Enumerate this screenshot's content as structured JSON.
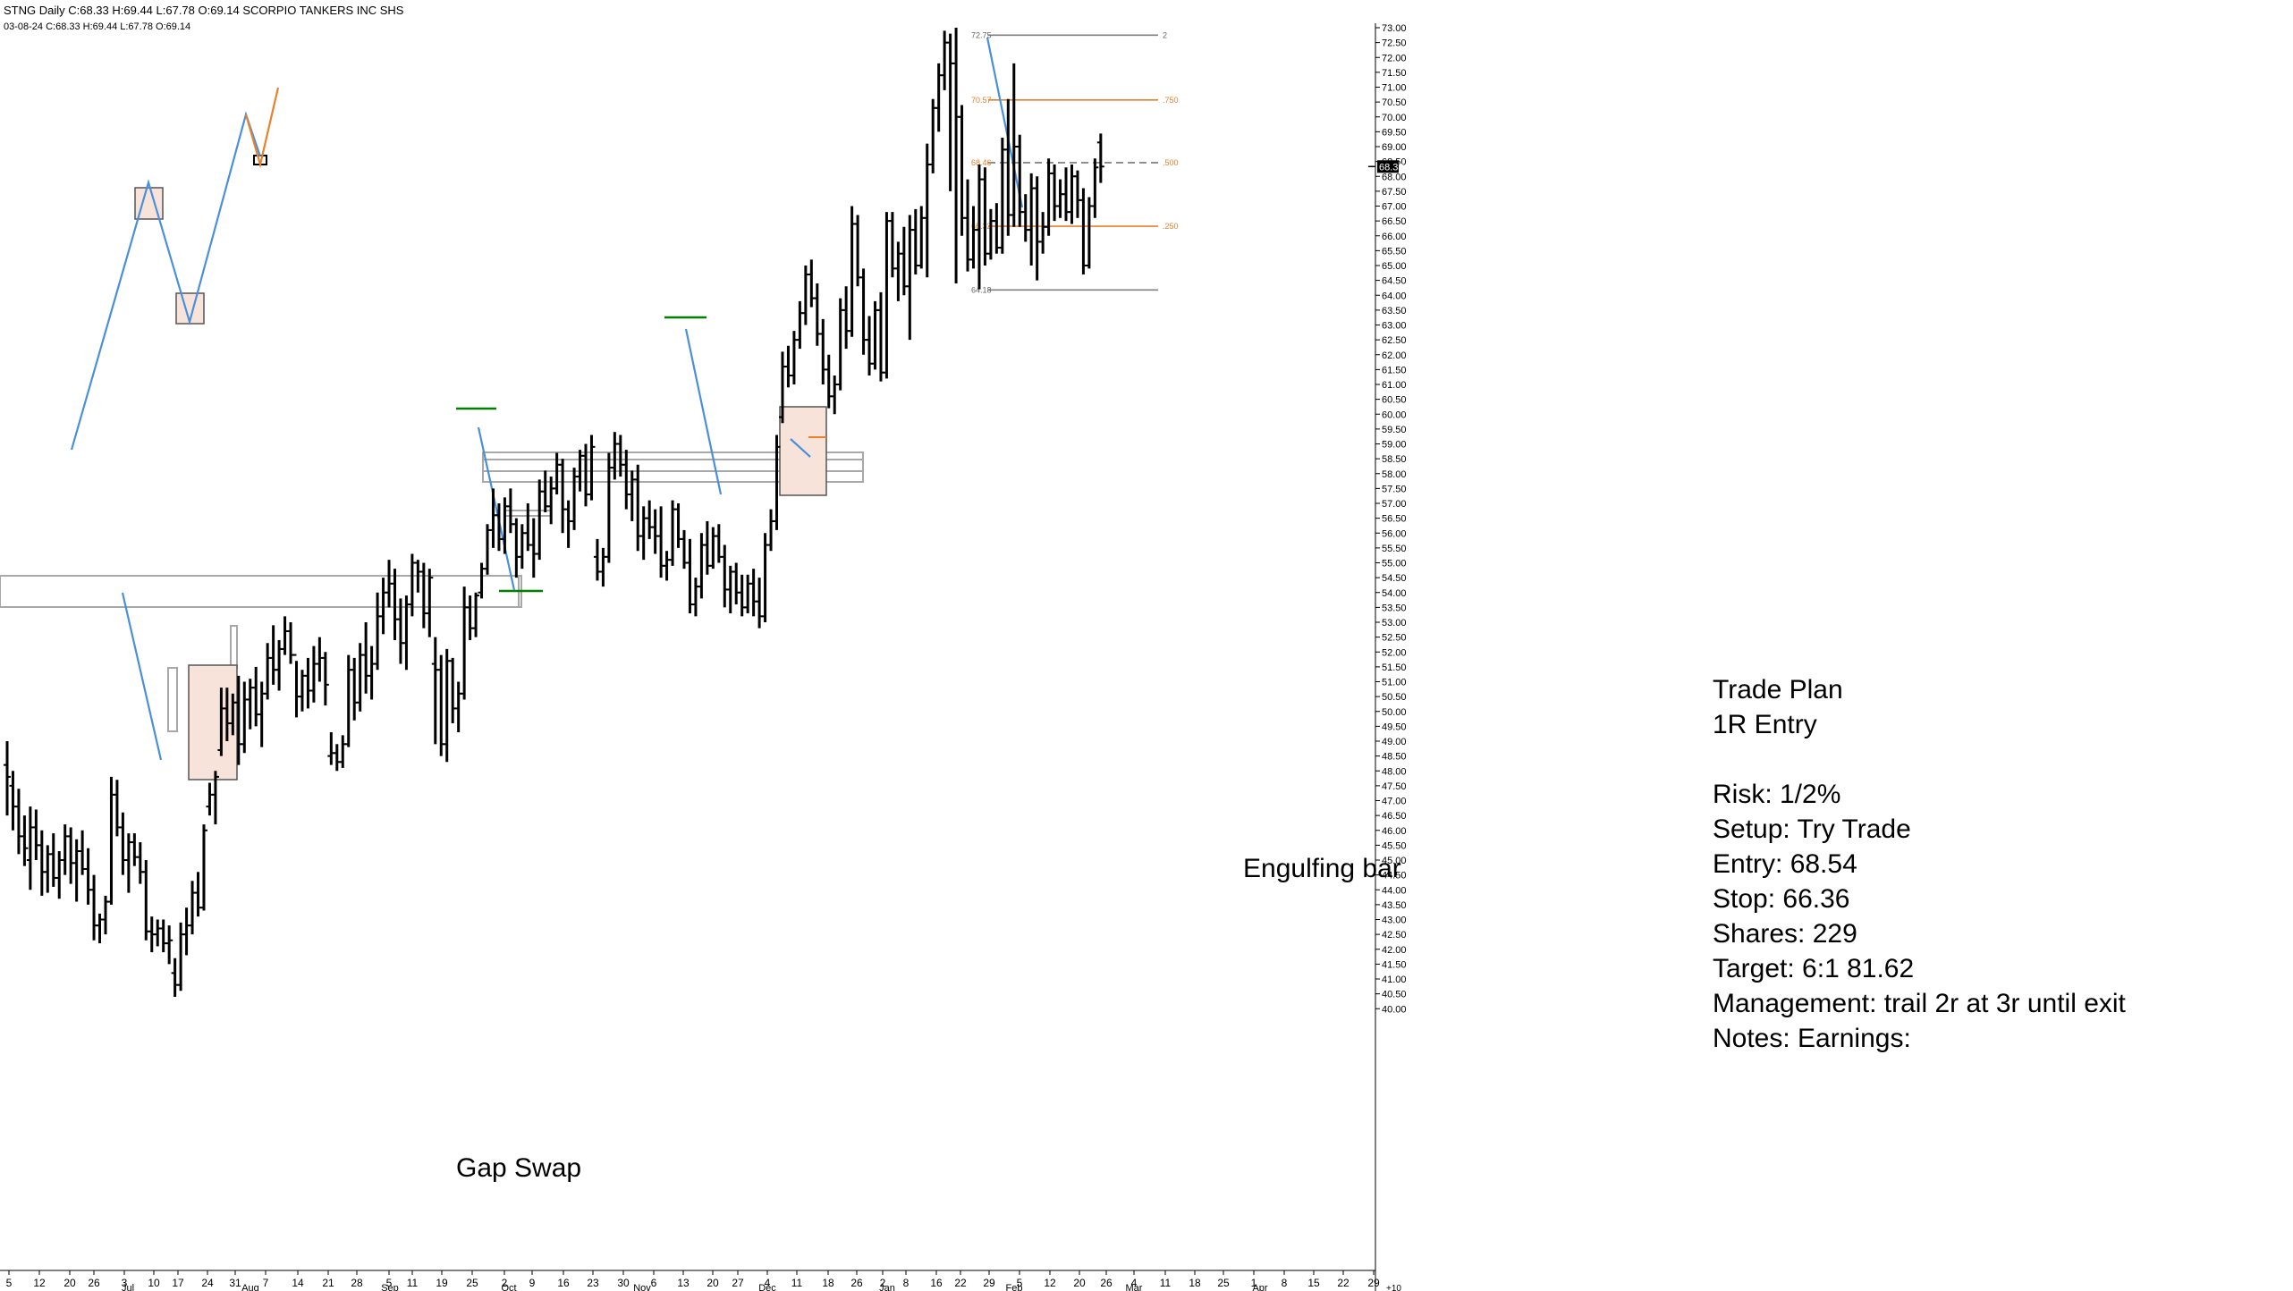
{
  "header": {
    "line1": "STNG Daily C:68.33 H:69.44 L:67.78 O:69.14 SCORPIO TANKERS INC SHS",
    "line2": "03-08-24 C:68.33 H:69.44 L:67.78 O:69.14"
  },
  "notes": {
    "gap_swap": "Gap Swap",
    "engulfing": "Engulfing bar"
  },
  "trade_plan": {
    "title": "Trade Plan",
    "subtitle": "1R Entry",
    "risk": "Risk: 1/2%",
    "setup": "Setup: Try Trade",
    "entry": "Entry: 68.54",
    "stop": "Stop: 66.36",
    "shares": "Shares: 229",
    "target": "Target: 6:1  81.62",
    "management": "Management: trail 2r at 3r until exit",
    "notes_line": "Notes: Earnings:"
  },
  "colors": {
    "bars": "#000000",
    "swing_line": "#4a90d9",
    "projection_line": "#e8812c",
    "level_line": "#008000",
    "zone_fill": "#f8e3da",
    "fib_mid": "#e8812c",
    "fib_outer": "#808080"
  },
  "chart_data": {
    "type": "ohlc",
    "symbol": "STNG",
    "y_axis": {
      "min": 40.0,
      "max": 73.0,
      "tick_step": 0.5,
      "last_price": "68.33",
      "position": "right"
    },
    "x_axis": {
      "tick_labels": [
        "5",
        "12",
        "20",
        "26",
        "3",
        "10",
        "17",
        "24",
        "31",
        "7",
        "14",
        "21",
        "28",
        "5",
        "11",
        "19",
        "25",
        "2",
        "9",
        "16",
        "23",
        "30",
        "6",
        "13",
        "20",
        "27",
        "4",
        "11",
        "18",
        "26",
        "2",
        "8",
        "16",
        "22",
        "29",
        "5",
        "12",
        "20",
        "26",
        "4",
        "11",
        "18",
        "25",
        "1",
        "8",
        "15",
        "22",
        "29"
      ],
      "month_labels": [
        "Jul",
        "Aug",
        "Sep",
        "Oct",
        "Nov",
        "Dec",
        "Jan",
        "Feb",
        "Mar",
        "Apr"
      ],
      "right_label": "+10"
    },
    "fib_levels": [
      {
        "value": 72.75,
        "label": "72.75",
        "ratio": "2"
      },
      {
        "value": 70.57,
        "label": "70.57",
        "ratio": ".750"
      },
      {
        "value": 68.46,
        "label": "68.46",
        "ratio": ".500"
      },
      {
        "value": 66.32,
        "label": "66.32",
        "ratio": ".250"
      },
      {
        "value": 64.18,
        "label": "64.18",
        "ratio": ""
      }
    ],
    "bars": [
      [
        48.2,
        49.0,
        46.5,
        47.8
      ],
      [
        47.5,
        48.0,
        46.0,
        46.8
      ],
      [
        46.8,
        47.4,
        45.2,
        45.8
      ],
      [
        45.8,
        46.5,
        44.8,
        45.4
      ],
      [
        45.0,
        46.8,
        44.0,
        46.1
      ],
      [
        46.1,
        46.7,
        45.0,
        45.5
      ],
      [
        45.5,
        46.0,
        43.8,
        44.6
      ],
      [
        44.6,
        45.5,
        43.9,
        45.2
      ],
      [
        45.2,
        45.9,
        44.1,
        44.4
      ],
      [
        44.4,
        45.3,
        43.7,
        45.0
      ],
      [
        45.0,
        46.2,
        44.5,
        45.8
      ],
      [
        45.8,
        46.1,
        44.2,
        44.9
      ],
      [
        44.9,
        45.7,
        43.6,
        45.3
      ],
      [
        45.3,
        46.0,
        44.5,
        44.7
      ],
      [
        44.7,
        45.4,
        43.5,
        44.0
      ],
      [
        44.0,
        44.5,
        42.3,
        42.8
      ],
      [
        42.8,
        43.2,
        42.2,
        43.0
      ],
      [
        43.0,
        43.8,
        42.5,
        43.6
      ],
      [
        43.6,
        47.8,
        43.5,
        47.2
      ],
      [
        47.2,
        47.7,
        45.8,
        46.1
      ],
      [
        46.1,
        46.6,
        44.5,
        45.0
      ],
      [
        45.0,
        45.9,
        43.9,
        45.6
      ],
      [
        45.6,
        45.9,
        44.8,
        45.1
      ],
      [
        45.1,
        45.6,
        44.2,
        44.6
      ],
      [
        44.6,
        45.0,
        42.3,
        42.6
      ],
      [
        42.6,
        43.1,
        41.9,
        42.5
      ],
      [
        42.5,
        43.0,
        42.1,
        42.7
      ],
      [
        42.7,
        43.0,
        41.9,
        42.2
      ],
      [
        42.2,
        42.8,
        41.5,
        42.3
      ],
      [
        41.2,
        41.7,
        40.4,
        40.8
      ],
      [
        40.8,
        42.9,
        40.6,
        42.5
      ],
      [
        42.5,
        43.4,
        41.8,
        42.8
      ],
      [
        42.8,
        44.3,
        42.5,
        43.9
      ],
      [
        43.9,
        44.6,
        43.1,
        43.4
      ],
      [
        43.4,
        46.2,
        43.3,
        46.0
      ],
      [
        46.8,
        47.6,
        46.5,
        47.2
      ],
      [
        47.2,
        48.0,
        46.2,
        47.8
      ],
      [
        48.7,
        50.8,
        48.5,
        50.1
      ],
      [
        50.1,
        50.8,
        49.0,
        49.6
      ],
      [
        49.6,
        50.6,
        49.2,
        50.3
      ],
      [
        50.3,
        51.2,
        48.2,
        48.9
      ],
      [
        48.9,
        51.0,
        48.6,
        50.4
      ],
      [
        50.4,
        51.1,
        49.4,
        50.8
      ],
      [
        50.8,
        51.5,
        49.5,
        49.9
      ],
      [
        49.9,
        51.0,
        48.8,
        50.6
      ],
      [
        50.6,
        52.3,
        50.4,
        51.8
      ],
      [
        51.8,
        52.9,
        50.9,
        51.4
      ],
      [
        51.4,
        52.4,
        50.7,
        52.1
      ],
      [
        52.1,
        53.2,
        51.9,
        52.7
      ],
      [
        52.7,
        53.0,
        51.6,
        51.9
      ],
      [
        51.9,
        51.7,
        49.8,
        50.5
      ],
      [
        50.5,
        51.4,
        50.0,
        51.2
      ],
      [
        51.2,
        51.8,
        50.1,
        50.7
      ],
      [
        50.7,
        52.2,
        50.3,
        51.6
      ],
      [
        51.6,
        52.5,
        51.0,
        51.8
      ],
      [
        51.8,
        52.0,
        50.2,
        50.9
      ],
      [
        48.5,
        49.3,
        48.2,
        48.6
      ],
      [
        48.6,
        48.9,
        48.0,
        48.3
      ],
      [
        48.3,
        49.2,
        48.1,
        48.9
      ],
      [
        48.9,
        51.9,
        48.8,
        51.4
      ],
      [
        51.4,
        51.8,
        49.7,
        50.3
      ],
      [
        50.3,
        52.3,
        50.0,
        51.9
      ],
      [
        51.9,
        53.0,
        50.6,
        51.2
      ],
      [
        51.2,
        52.2,
        50.4,
        51.6
      ],
      [
        51.6,
        54.0,
        51.4,
        53.2
      ],
      [
        53.2,
        54.5,
        52.6,
        54.0
      ],
      [
        54.0,
        55.1,
        53.5,
        54.3
      ],
      [
        54.3,
        54.8,
        52.4,
        53.1
      ],
      [
        53.1,
        53.8,
        51.6,
        52.3
      ],
      [
        52.3,
        53.9,
        51.4,
        53.6
      ],
      [
        53.6,
        55.3,
        53.2,
        55.0
      ],
      [
        55.0,
        55.1,
        54.0,
        54.7
      ],
      [
        54.7,
        55.0,
        52.8,
        53.3
      ],
      [
        53.3,
        54.8,
        52.5,
        54.5
      ],
      [
        51.6,
        52.5,
        48.9,
        51.4
      ],
      [
        51.4,
        51.9,
        48.5,
        48.9
      ],
      [
        48.9,
        52.1,
        48.3,
        51.7
      ],
      [
        51.7,
        51.8,
        49.6,
        50.1
      ],
      [
        50.1,
        51.0,
        49.3,
        50.6
      ],
      [
        50.6,
        54.2,
        50.4,
        53.5
      ],
      [
        53.5,
        53.9,
        52.4,
        52.8
      ],
      [
        52.8,
        54.0,
        52.5,
        53.9
      ],
      [
        54.0,
        55.0,
        53.8,
        54.8
      ],
      [
        54.8,
        56.3,
        54.6,
        56.1
      ],
      [
        56.1,
        57.5,
        55.5,
        56.6
      ],
      [
        56.6,
        57.0,
        55.4,
        55.8
      ],
      [
        55.8,
        57.2,
        55.3,
        56.9
      ],
      [
        56.9,
        57.5,
        56.0,
        56.3
      ],
      [
        56.3,
        56.5,
        54.5,
        55.2
      ],
      [
        55.2,
        56.3,
        54.8,
        56.0
      ],
      [
        56.0,
        57.0,
        55.4,
        55.6
      ],
      [
        55.6,
        56.5,
        54.5,
        55.3
      ],
      [
        55.3,
        57.8,
        55.1,
        57.4
      ],
      [
        57.4,
        58.1,
        56.7,
        56.9
      ],
      [
        56.9,
        57.9,
        56.3,
        57.5
      ],
      [
        57.5,
        58.7,
        57.3,
        58.3
      ],
      [
        58.3,
        58.5,
        56.0,
        56.8
      ],
      [
        56.8,
        57.1,
        55.5,
        56.4
      ],
      [
        56.4,
        58.2,
        56.1,
        57.9
      ],
      [
        57.9,
        58.8,
        57.4,
        58.6
      ],
      [
        58.6,
        59.0,
        56.9,
        57.3
      ],
      [
        57.3,
        59.3,
        57.1,
        58.9
      ],
      [
        55.2,
        55.8,
        54.4,
        54.7
      ],
      [
        54.7,
        55.5,
        54.2,
        55.2
      ],
      [
        55.2,
        58.7,
        55.0,
        58.2
      ],
      [
        58.2,
        59.4,
        57.8,
        59.0
      ],
      [
        59.0,
        59.3,
        57.9,
        58.3
      ],
      [
        58.3,
        58.8,
        56.8,
        57.3
      ],
      [
        57.3,
        58.1,
        56.4,
        57.8
      ],
      [
        57.8,
        58.3,
        55.4,
        55.9
      ],
      [
        55.9,
        56.9,
        55.1,
        56.5
      ],
      [
        56.5,
        57.1,
        55.8,
        56.2
      ],
      [
        56.2,
        56.8,
        55.3,
        55.9
      ],
      [
        55.9,
        56.9,
        54.5,
        54.9
      ],
      [
        54.9,
        55.4,
        54.4,
        55.1
      ],
      [
        55.1,
        57.1,
        54.9,
        56.8
      ],
      [
        56.8,
        57.0,
        55.5,
        55.8
      ],
      [
        55.8,
        56.1,
        54.8,
        55.0
      ],
      [
        55.0,
        55.8,
        53.3,
        53.6
      ],
      [
        53.6,
        54.5,
        53.2,
        54.2
      ],
      [
        54.2,
        56.0,
        53.8,
        55.6
      ],
      [
        55.6,
        56.4,
        54.6,
        54.9
      ],
      [
        54.9,
        56.2,
        54.8,
        55.9
      ],
      [
        55.9,
        56.3,
        55.0,
        55.2
      ],
      [
        55.2,
        55.6,
        53.5,
        54.1
      ],
      [
        54.1,
        54.9,
        53.3,
        54.7
      ],
      [
        54.7,
        55.0,
        53.6,
        54.0
      ],
      [
        54.0,
        54.6,
        53.2,
        53.5
      ],
      [
        53.5,
        54.6,
        53.3,
        54.3
      ],
      [
        54.3,
        54.8,
        53.2,
        53.7
      ],
      [
        53.7,
        54.5,
        52.8,
        53.2
      ],
      [
        53.2,
        56.0,
        53.0,
        55.6
      ],
      [
        55.6,
        56.8,
        55.4,
        56.4
      ],
      [
        56.4,
        59.3,
        56.1,
        58.9
      ],
      [
        59.9,
        62.1,
        59.7,
        61.6
      ],
      [
        61.6,
        62.3,
        60.9,
        61.3
      ],
      [
        61.3,
        62.8,
        61.0,
        62.5
      ],
      [
        62.5,
        63.8,
        62.2,
        63.4
      ],
      [
        63.4,
        65.0,
        63.0,
        64.7
      ],
      [
        64.7,
        65.2,
        63.6,
        63.9
      ],
      [
        63.9,
        64.4,
        62.3,
        62.7
      ],
      [
        62.7,
        63.2,
        61.0,
        61.5
      ],
      [
        61.5,
        62.0,
        60.2,
        60.6
      ],
      [
        60.6,
        61.3,
        60.0,
        61.0
      ],
      [
        61.0,
        63.9,
        60.8,
        63.5
      ],
      [
        63.5,
        64.3,
        62.2,
        62.8
      ],
      [
        62.8,
        67.0,
        62.6,
        66.4
      ],
      [
        66.4,
        66.7,
        64.3,
        64.6
      ],
      [
        64.6,
        64.9,
        62.0,
        62.5
      ],
      [
        62.5,
        63.3,
        61.3,
        61.7
      ],
      [
        61.7,
        63.8,
        61.5,
        63.5
      ],
      [
        63.5,
        64.1,
        61.1,
        61.4
      ],
      [
        61.4,
        66.8,
        61.2,
        66.5
      ],
      [
        66.5,
        66.8,
        64.6,
        64.9
      ],
      [
        64.9,
        65.8,
        63.8,
        65.4
      ],
      [
        65.4,
        66.3,
        64.0,
        64.3
      ],
      [
        64.3,
        66.7,
        62.5,
        66.2
      ],
      [
        66.2,
        66.9,
        64.7,
        65.0
      ],
      [
        65.0,
        67.0,
        64.9,
        66.6
      ],
      [
        66.6,
        69.1,
        64.6,
        68.4
      ],
      [
        68.4,
        70.6,
        68.1,
        70.3
      ],
      [
        70.3,
        71.8,
        69.5,
        71.4
      ],
      [
        71.4,
        72.9,
        70.9,
        72.5
      ],
      [
        72.5,
        72.8,
        67.5,
        71.8
      ],
      [
        71.8,
        73.0,
        64.4,
        70.0
      ],
      [
        70.0,
        70.4,
        66.0,
        66.6
      ],
      [
        66.6,
        67.9,
        64.8,
        65.2
      ],
      [
        65.2,
        67.0,
        64.9,
        66.2
      ],
      [
        66.2,
        68.4,
        64.2,
        67.9
      ],
      [
        67.9,
        68.3,
        65.0,
        65.4
      ],
      [
        65.4,
        66.9,
        65.2,
        66.5
      ],
      [
        66.5,
        67.1,
        65.4,
        65.6
      ],
      [
        65.6,
        69.3,
        65.4,
        68.9
      ],
      [
        68.9,
        70.6,
        66.0,
        66.7
      ],
      [
        66.7,
        71.8,
        66.3,
        69.0
      ],
      [
        69.0,
        69.4,
        66.3,
        66.8
      ],
      [
        66.8,
        67.4,
        65.8,
        66.2
      ],
      [
        66.2,
        68.1,
        65.0,
        67.6
      ],
      [
        67.6,
        68.0,
        64.5,
        65.8
      ],
      [
        65.8,
        66.8,
        65.4,
        66.3
      ],
      [
        66.3,
        68.6,
        66.0,
        68.1
      ],
      [
        68.1,
        68.4,
        66.5,
        67.0
      ],
      [
        67.0,
        67.9,
        66.6,
        67.4
      ],
      [
        67.4,
        68.3,
        66.5,
        66.8
      ],
      [
        66.8,
        68.4,
        66.4,
        68.0
      ],
      [
        68.0,
        68.2,
        66.6,
        67.2
      ],
      [
        67.2,
        67.6,
        64.7,
        65.0
      ],
      [
        65.0,
        67.3,
        64.9,
        67.0
      ],
      [
        67.0,
        68.6,
        66.6,
        68.3
      ],
      [
        69.14,
        69.44,
        67.78,
        68.33
      ]
    ]
  }
}
